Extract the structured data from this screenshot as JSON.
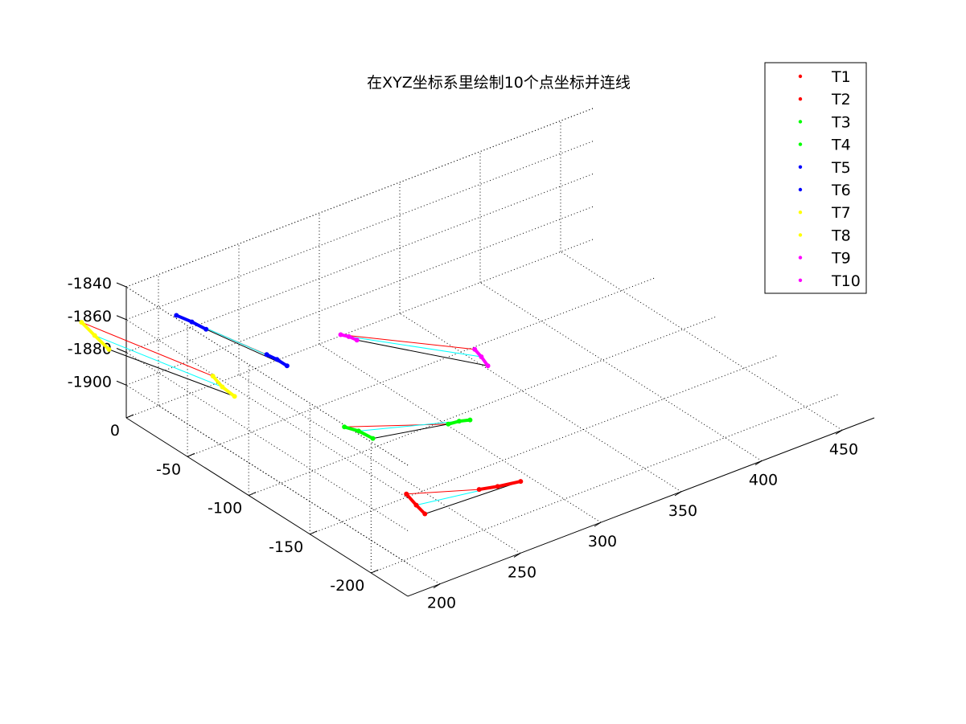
{
  "chart_data": {
    "type": "scatter-3d",
    "title": "在XYZ坐标系里绘制10个点坐标并连线",
    "x_axis": {
      "ticks": [
        200,
        250,
        300,
        350,
        400,
        450
      ],
      "range": [
        180,
        470
      ]
    },
    "y_axis": {
      "ticks": [
        0,
        -50,
        -100,
        -150,
        -200
      ],
      "range": [
        -230,
        0
      ]
    },
    "z_axis": {
      "ticks": [
        -1840,
        -1860,
        -1880,
        -1900
      ],
      "range": [
        -1920,
        -1840
      ]
    },
    "grid": true,
    "legend_position": "top-right",
    "legend": [
      {
        "label": "T1",
        "color": "#ff0000"
      },
      {
        "label": "T2",
        "color": "#ff0000"
      },
      {
        "label": "T3",
        "color": "#00ff00"
      },
      {
        "label": "T4",
        "color": "#00ff00"
      },
      {
        "label": "T5",
        "color": "#0000ff"
      },
      {
        "label": "T6",
        "color": "#0000ff"
      },
      {
        "label": "T7",
        "color": "#ffff00"
      },
      {
        "label": "T8",
        "color": "#ffff00"
      },
      {
        "label": "T9",
        "color": "#ff00ff"
      },
      {
        "label": "T10",
        "color": "#ff00ff"
      }
    ],
    "series": [
      {
        "name": "T1",
        "color": "#ff0000",
        "x": [
          240,
          237,
          234
        ],
        "y": [
          -150,
          -162,
          -173
        ],
        "z": [
          -1918,
          -1918,
          -1917
        ]
      },
      {
        "name": "T2",
        "color": "#ff0000",
        "x": [
          270,
          280,
          292
        ],
        "y": [
          -170,
          -172,
          -175
        ],
        "z": [
          -1917,
          -1918,
          -1918
        ]
      },
      {
        "name": "T3",
        "color": "#00ff00",
        "x": [
          257,
          259,
          261
        ],
        "y": [
          -77,
          -86,
          -95
        ],
        "z": [
          -1918,
          -1917,
          -1918
        ]
      },
      {
        "name": "T4",
        "color": "#00ff00",
        "x": [
          298,
          304,
          310
        ],
        "y": [
          -108,
          -109,
          -110
        ],
        "z": [
          -1917,
          -1917,
          -1918
        ]
      },
      {
        "name": "T5",
        "color": "#0000ff",
        "x": [
          183,
          185,
          187
        ],
        "y": [
          -37,
          -47,
          -56
        ],
        "z": [
          -1841,
          -1841,
          -1842
        ]
      },
      {
        "name": "T6",
        "color": "#0000ff",
        "x": [
          195,
          196,
          197
        ],
        "y": [
          -95,
          -102,
          -109
        ],
        "z": [
          -1842,
          -1842,
          -1843
        ]
      },
      {
        "name": "T7",
        "color": "#ffff00",
        "x": [
          137,
          136,
          135
        ],
        "y": [
          -20,
          -32,
          -45
        ],
        "z": [
          -1836,
          -1838,
          -1840
        ]
      },
      {
        "name": "T8",
        "color": "#ffff00",
        "x": [
          157,
          156,
          156
        ],
        "y": [
          -101,
          -110,
          -120
        ],
        "z": [
          -1838,
          -1840,
          -1841
        ]
      },
      {
        "name": "T9",
        "color": "#ff00ff",
        "x": [
          311,
          313,
          315
        ],
        "y": [
          -3,
          -7,
          -11
        ],
        "z": [
          -1917,
          -1917,
          -1918
        ]
      },
      {
        "name": "T10",
        "color": "#ff00ff",
        "x": [
          354,
          352,
          350
        ],
        "y": [
          -56,
          -64,
          -72
        ],
        "z": [
          -1917,
          -1917,
          -1918
        ]
      }
    ],
    "connections": [
      {
        "from": "T1",
        "to": "T2",
        "colors": [
          "#ff0000",
          "#00ffff",
          "#000000"
        ]
      },
      {
        "from": "T3",
        "to": "T4",
        "colors": [
          "#ff0000",
          "#00ffff",
          "#000000"
        ]
      },
      {
        "from": "T5",
        "to": "T6",
        "colors": [
          "#ff0000",
          "#00ffff",
          "#000000"
        ]
      },
      {
        "from": "T7",
        "to": "T8",
        "colors": [
          "#ff0000",
          "#00ffff",
          "#000000"
        ]
      },
      {
        "from": "T9",
        "to": "T10",
        "colors": [
          "#ff0000",
          "#00ffff",
          "#000000"
        ]
      }
    ]
  }
}
